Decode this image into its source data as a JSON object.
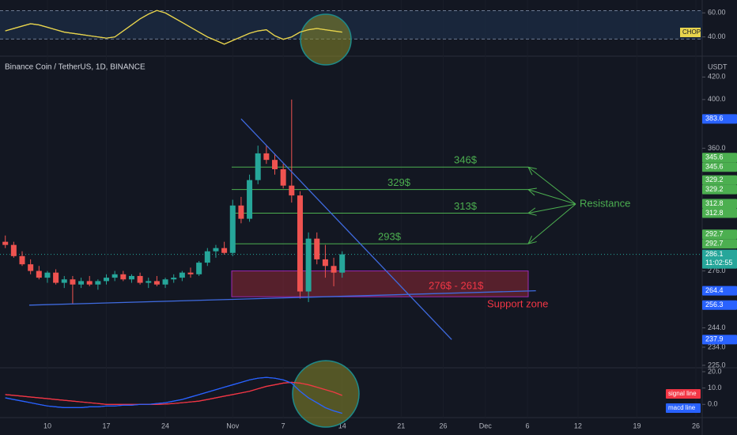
{
  "chart_data": [
    {
      "type": "candlestick",
      "title": "Binance Coin / TetherUS, 1D, BINANCE",
      "currency": "USDT",
      "x": [
        -5,
        -4,
        -3,
        -2,
        -1,
        0,
        1,
        2,
        3,
        4,
        5,
        6,
        7,
        8,
        9,
        10,
        11,
        12,
        13,
        14,
        15,
        16,
        17,
        18,
        19,
        20,
        21,
        22,
        23,
        24,
        25,
        26,
        27,
        28,
        29,
        30,
        31,
        32,
        33,
        34,
        35
      ],
      "open": [
        294,
        292,
        285,
        280,
        276,
        272,
        275,
        269,
        271,
        268,
        270,
        268,
        270,
        272,
        274,
        271,
        273,
        269,
        270,
        268,
        271,
        272,
        275,
        274,
        281,
        288,
        290,
        287,
        318,
        309,
        336,
        356,
        351,
        344,
        332,
        325,
        264,
        296,
        283,
        279,
        275
      ],
      "high": [
        298,
        294,
        288,
        283,
        279,
        276,
        277,
        273,
        273,
        272,
        273,
        271,
        274,
        276,
        276,
        274,
        275,
        272,
        273,
        272,
        274,
        276,
        278,
        282,
        290,
        292,
        294,
        322,
        324,
        340,
        362,
        362,
        356,
        348,
        400,
        328,
        300,
        300,
        292,
        284,
        288
      ],
      "low": [
        290,
        284,
        279,
        274,
        271,
        269,
        268,
        266,
        257,
        266,
        267,
        265,
        268,
        270,
        270,
        269,
        268,
        266,
        267,
        266,
        269,
        270,
        272,
        273,
        279,
        284,
        286,
        285,
        306,
        307,
        333,
        348,
        340,
        330,
        320,
        260,
        258,
        280,
        272,
        267,
        272
      ],
      "close": [
        292,
        285,
        280,
        276,
        272,
        275,
        269,
        271,
        268,
        270,
        268,
        270,
        272,
        274,
        271,
        273,
        269,
        270,
        268,
        271,
        272,
        275,
        274,
        281,
        288,
        290,
        287,
        318,
        309,
        336,
        356,
        351,
        344,
        332,
        325,
        264,
        296,
        283,
        279,
        275,
        286.1
      ],
      "up_color": "#26a69a",
      "down_color": "#ef5350",
      "xlim": [
        -5.63,
        77.75
      ],
      "ylim": [
        223.8,
        439.4
      ],
      "log_scale": true,
      "grid": true,
      "yticks": [
        {
          "value": 420,
          "label": "420.0"
        },
        {
          "value": 400,
          "label": "400.0"
        },
        {
          "value": 360,
          "label": "360.0"
        },
        {
          "value": 276,
          "label": "276.0"
        },
        {
          "value": 244,
          "label": "244.0"
        },
        {
          "value": 234,
          "label": "234.0"
        },
        {
          "value": 225,
          "label": "225.0"
        }
      ],
      "xticks": [
        {
          "value": 0,
          "label": "10"
        },
        {
          "value": 7,
          "label": "17"
        },
        {
          "value": 14,
          "label": "24"
        },
        {
          "value": 22,
          "label": "Nov"
        },
        {
          "value": 28,
          "label": "7"
        },
        {
          "value": 35,
          "label": "14"
        },
        {
          "value": 42,
          "label": "21"
        },
        {
          "value": 47,
          "label": "26"
        },
        {
          "value": 52,
          "label": "Dec"
        },
        {
          "value": 57,
          "label": "6"
        },
        {
          "value": 63,
          "label": "12"
        },
        {
          "value": 70,
          "label": "19"
        },
        {
          "value": 77,
          "label": "26"
        }
      ],
      "price_tags": [
        {
          "value": 383.6,
          "label": "383.6",
          "color": "#2962ff"
        },
        {
          "value": 345.6,
          "label": "345.6",
          "color": "#4caf50"
        },
        {
          "value": 345.6,
          "label": "345.6",
          "color": "#4caf50"
        },
        {
          "value": 329.2,
          "label": "329.2",
          "color": "#4caf50"
        },
        {
          "value": 329.2,
          "label": "329.2",
          "color": "#4caf50"
        },
        {
          "value": 312.8,
          "label": "312.8",
          "color": "#4caf50"
        },
        {
          "value": 312.8,
          "label": "312.8",
          "color": "#4caf50"
        },
        {
          "value": 292.7,
          "label": "292.7",
          "color": "#4caf50"
        },
        {
          "value": 292.7,
          "label": "292.7",
          "color": "#4caf50"
        },
        {
          "value": 286.1,
          "label": "286.1",
          "countdown": "11:02:55",
          "color": "#26a69a"
        },
        {
          "value": 264.4,
          "label": "264.4",
          "color": "#2962ff"
        },
        {
          "value": 256.3,
          "label": "256.3",
          "color": "#2962ff"
        },
        {
          "value": 237.9,
          "label": "237.9",
          "color": "#2962ff"
        }
      ],
      "trend_lines": [
        {
          "x": [
            23,
            48
          ],
          "values": [
            383.6,
            237.9
          ],
          "color": "#3f6be0"
        },
        {
          "x": [
            -2.16,
            58
          ],
          "values": [
            256.3,
            264.4
          ],
          "color": "#3f6be0"
        }
      ],
      "resistance": {
        "label": "Resistance",
        "color": "#4caf50",
        "levels": [
          {
            "value": 345.6,
            "label": "346$"
          },
          {
            "value": 329.2,
            "label": "329$"
          },
          {
            "value": 312.8,
            "label": "313$"
          },
          {
            "value": 292.7,
            "label": "293$"
          }
        ]
      },
      "support_zone": {
        "top": 276,
        "bottom": 261,
        "label": "276$ - 261$",
        "name": "Support zone",
        "color": "#f23645"
      }
    },
    {
      "type": "line",
      "ylim": [
        24,
        70.7
      ],
      "yticks": [
        {
          "value": 60,
          "label": "60.00"
        },
        {
          "value": 40,
          "label": "40.00"
        }
      ],
      "band": [
        38.2,
        61.8
      ],
      "x": [
        -5,
        -4,
        -3,
        -2,
        -1,
        0,
        1,
        2,
        3,
        4,
        5,
        6,
        7,
        8,
        9,
        10,
        11,
        12,
        13,
        14,
        15,
        16,
        17,
        18,
        19,
        20,
        21,
        22,
        23,
        24,
        25,
        26,
        27,
        28,
        29,
        30,
        31,
        32,
        33,
        34,
        35
      ],
      "series": [
        {
          "name": "CHOP",
          "color": "#e8d44d",
          "values": [
            45,
            47,
            49,
            51,
            50,
            48,
            46,
            44,
            43,
            42,
            41,
            40,
            39,
            40,
            45,
            50,
            55,
            59,
            62,
            60,
            56,
            52,
            48,
            44,
            40,
            37,
            34,
            37,
            40,
            43,
            45,
            46,
            41,
            38,
            40,
            44,
            46,
            47,
            46,
            45,
            44
          ]
        }
      ]
    },
    {
      "type": "line",
      "ylim": [
        -8.1,
        22.4
      ],
      "yticks": [
        {
          "value": 20,
          "label": "20.0"
        },
        {
          "value": 10,
          "label": "10.0"
        },
        {
          "value": 0,
          "label": "0.0"
        }
      ],
      "x": [
        -5,
        -4,
        -3,
        -2,
        -1,
        0,
        1,
        2,
        3,
        4,
        5,
        6,
        7,
        8,
        9,
        10,
        11,
        12,
        13,
        14,
        15,
        16,
        17,
        18,
        19,
        20,
        21,
        22,
        23,
        24,
        25,
        26,
        27,
        28,
        29,
        30,
        31,
        32,
        33,
        34,
        35
      ],
      "series": [
        {
          "name": "signal line",
          "color": "#f23645",
          "values": [
            6,
            5.5,
            5,
            4.5,
            4,
            3.5,
            3,
            2.5,
            2,
            1.5,
            1,
            0.5,
            0,
            0,
            0,
            0,
            0,
            0,
            0,
            0.2,
            0.5,
            1,
            1.5,
            2,
            3,
            4,
            5,
            6,
            7,
            8,
            9.5,
            11,
            12,
            13,
            13.5,
            13,
            12,
            10.5,
            9,
            7.5,
            5.5
          ]
        },
        {
          "name": "macd line",
          "color": "#2962ff",
          "values": [
            4,
            3,
            2,
            1,
            0,
            -1,
            -1.5,
            -2,
            -2,
            -2,
            -1.5,
            -1.5,
            -1,
            -1,
            -0.5,
            -0.5,
            0,
            0,
            0.5,
            1,
            2,
            3,
            4.5,
            6,
            7.5,
            9,
            10.5,
            12,
            13.5,
            15,
            16,
            16.5,
            16,
            15,
            13,
            8,
            4,
            1,
            -2,
            -4,
            -5.5
          ]
        }
      ]
    }
  ]
}
